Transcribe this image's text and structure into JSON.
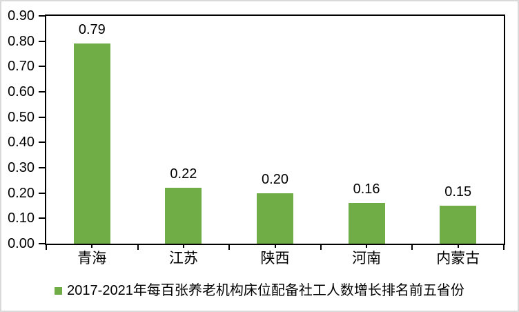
{
  "chart_data": {
    "type": "bar",
    "title": "",
    "categories": [
      "青海",
      "江苏",
      "陕西",
      "河南",
      "内蒙古"
    ],
    "values": [
      0.79,
      0.22,
      0.2,
      0.16,
      0.15
    ],
    "value_labels": [
      "0.79",
      "0.22",
      "0.20",
      "0.16",
      "0.15"
    ],
    "y_tick_labels": [
      "0.90",
      "0.80",
      "0.70",
      "0.60",
      "0.50",
      "0.40",
      "0.30",
      "0.20",
      "0.10",
      "0.00"
    ],
    "ylim": [
      0,
      0.9
    ],
    "y_step": 0.1,
    "grid": false,
    "legend_position": "bottom",
    "legend": "2017-2021年每百张养老机构床位配备社工人数增长排名前五省份",
    "colors": {
      "bar": "#70AD47",
      "axis": "#000000",
      "text": "#000000",
      "frame": "#D9D9D9",
      "background": "#FFFFFF"
    }
  }
}
